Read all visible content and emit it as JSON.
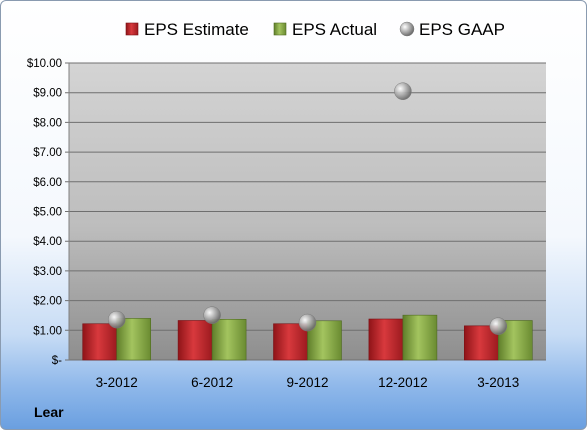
{
  "company": "Lear",
  "colors": {
    "estimate": "#c0262b",
    "actual": "#8cb04a",
    "gaap": "#a8a8a8",
    "plot_top": "#d0d0d0",
    "plot_bottom": "#8e8e8e"
  },
  "chart_data": {
    "type": "bar",
    "categories": [
      "3-2012",
      "6-2012",
      "9-2012",
      "12-2012",
      "3-2013"
    ],
    "series": [
      {
        "name": "EPS Estimate",
        "kind": "bar",
        "values": [
          1.22,
          1.33,
          1.22,
          1.38,
          1.15
        ]
      },
      {
        "name": "EPS Actual",
        "kind": "bar",
        "values": [
          1.4,
          1.37,
          1.32,
          1.51,
          1.33
        ]
      },
      {
        "name": "EPS GAAP",
        "kind": "scatter",
        "values": [
          1.36,
          1.51,
          1.26,
          9.05,
          1.14
        ]
      }
    ],
    "ylim": [
      0,
      10
    ],
    "yticks": [
      0,
      1,
      2,
      3,
      4,
      5,
      6,
      7,
      8,
      9,
      10
    ],
    "ytick_labels": [
      "$-",
      "$1.00",
      "$2.00",
      "$3.00",
      "$4.00",
      "$5.00",
      "$6.00",
      "$7.00",
      "$8.00",
      "$9.00",
      "$10.00"
    ],
    "grid": true,
    "legend_position": "top"
  }
}
